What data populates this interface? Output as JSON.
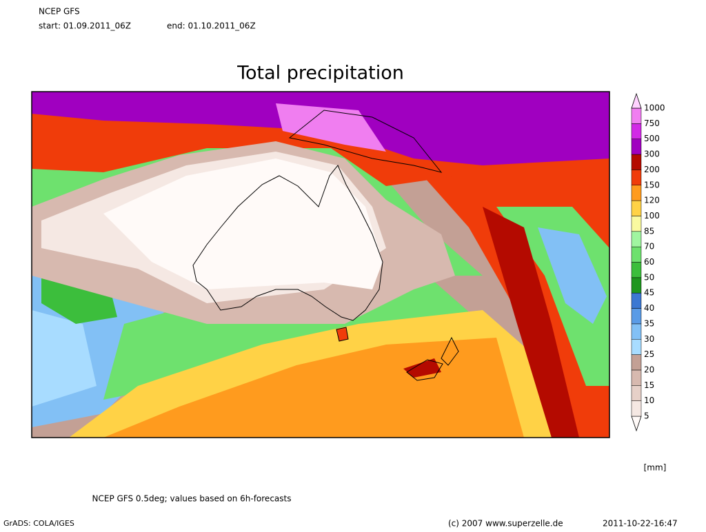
{
  "header": {
    "model": "NCEP GFS",
    "start": "start: 01.09.2011_06Z",
    "end": "end: 01.10.2011_06Z"
  },
  "title": "Total precipitation",
  "legend": {
    "levels": [
      5,
      10,
      15,
      20,
      25,
      30,
      35,
      40,
      45,
      50,
      60,
      70,
      85,
      100,
      120,
      150,
      200,
      300,
      500,
      750,
      1000
    ],
    "colors": [
      "#fffaf8",
      "#f5e8e3",
      "#e6d0c8",
      "#d7b9af",
      "#c3a095",
      "#a8dcff",
      "#82c0f5",
      "#5a9be6",
      "#3c78d2",
      "#1e961e",
      "#3cbe3c",
      "#6ee16e",
      "#a0f5a0",
      "#fafaa0",
      "#ffd246",
      "#ff9b1e",
      "#f03c0a",
      "#b40a00",
      "#a000c0",
      "#d22ae6",
      "#f07ef0",
      "#ffd2ff"
    ],
    "unit": "[mm]"
  },
  "footer": {
    "note": "NCEP GFS 0.5deg; values based on 6h-forecasts",
    "software": "GrADS: COLA/IGES",
    "copyright": "(c) 2007 www.superzelle.de",
    "timestamp": "2011-10-22-16:47"
  }
}
